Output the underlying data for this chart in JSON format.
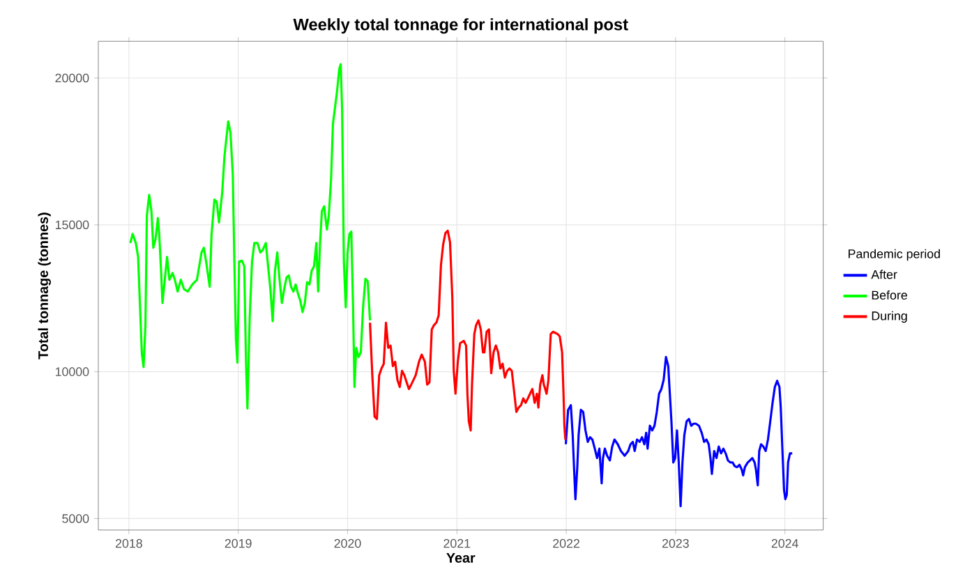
{
  "chart_data": {
    "type": "line",
    "title": "Weekly total tonnage for international post",
    "xlabel": "Year",
    "ylabel": "Total tonnage (tonnes)",
    "legend_title": "Pandemic period",
    "legend": "right",
    "grid": true,
    "line_style": "solid",
    "marker": "none",
    "xlim": [
      2017.72,
      2024.35
    ],
    "ylim": [
      4610,
      21250
    ],
    "xticks": [
      2018,
      2019,
      2020,
      2021,
      2022,
      2023,
      2024
    ],
    "yticks": [
      5000,
      10000,
      15000,
      20000
    ],
    "series": [
      {
        "name": "After",
        "color": "#0000ff",
        "x": [
          2021.996,
          2022.017,
          2022.042,
          2022.059,
          2022.071,
          2022.084,
          2022.101,
          2022.113,
          2022.134,
          2022.155,
          2022.176,
          2022.197,
          2022.218,
          2022.239,
          2022.261,
          2022.282,
          2022.303,
          2022.324,
          2022.336,
          2022.353,
          2022.374,
          2022.399,
          2022.42,
          2022.441,
          2022.471,
          2022.5,
          2022.534,
          2022.567,
          2022.588,
          2022.609,
          2022.626,
          2022.647,
          2022.672,
          2022.693,
          2022.714,
          2022.731,
          2022.744,
          2022.765,
          2022.786,
          2022.807,
          2022.828,
          2022.849,
          2022.87,
          2022.891,
          2022.912,
          2022.933,
          2022.945,
          2022.962,
          2022.979,
          2022.996,
          2023.013,
          2023.029,
          2023.046,
          2023.063,
          2023.08,
          2023.101,
          2023.122,
          2023.143,
          2023.164,
          2023.185,
          2023.214,
          2023.239,
          2023.261,
          2023.282,
          2023.303,
          2023.319,
          2023.332,
          2023.353,
          2023.374,
          2023.395,
          2023.416,
          2023.437,
          2023.458,
          2023.479,
          2023.5,
          2023.521,
          2023.542,
          2023.563,
          2023.584,
          2023.605,
          2023.618,
          2023.634,
          2023.66,
          2023.681,
          2023.702,
          2023.723,
          2023.735,
          2023.752,
          2023.765,
          2023.782,
          2023.803,
          2023.824,
          2023.845,
          2023.866,
          2023.887,
          2023.908,
          2023.929,
          2023.95,
          2023.962,
          2023.975,
          2023.992,
          2024.004,
          2024.017,
          2024.029,
          2024.046,
          2024.067
        ],
        "values": [
          7530,
          8700,
          8860,
          7840,
          6750,
          5660,
          6750,
          7840,
          8700,
          8630,
          8000,
          7610,
          7770,
          7690,
          7380,
          7060,
          7380,
          6200,
          7060,
          7380,
          7140,
          6980,
          7450,
          7690,
          7530,
          7300,
          7140,
          7300,
          7530,
          7610,
          7300,
          7690,
          7610,
          7770,
          7530,
          7920,
          7380,
          8160,
          8000,
          8160,
          8630,
          9250,
          9410,
          9720,
          10500,
          10190,
          9410,
          8310,
          6910,
          7060,
          8000,
          6910,
          5420,
          6910,
          7840,
          8310,
          8390,
          8160,
          8230,
          8230,
          8160,
          7920,
          7610,
          7690,
          7530,
          7060,
          6520,
          7300,
          7060,
          7450,
          7220,
          7380,
          7220,
          6980,
          6910,
          6910,
          6780,
          6750,
          6830,
          6670,
          6470,
          6750,
          6910,
          6980,
          7060,
          6910,
          6670,
          6130,
          7300,
          7530,
          7450,
          7300,
          7690,
          8310,
          8940,
          9480,
          9690,
          9480,
          8780,
          7530,
          5970,
          5660,
          5810,
          6910,
          7220,
          7220
        ]
      },
      {
        "name": "Before",
        "color": "#00ff00",
        "x": [
          2018.013,
          2018.034,
          2018.063,
          2018.084,
          2018.105,
          2018.118,
          2018.134,
          2018.151,
          2018.164,
          2018.185,
          2018.206,
          2018.223,
          2018.244,
          2018.265,
          2018.277,
          2018.294,
          2018.307,
          2018.328,
          2018.349,
          2018.37,
          2018.399,
          2018.42,
          2018.445,
          2018.475,
          2018.504,
          2018.538,
          2018.58,
          2018.622,
          2018.664,
          2018.685,
          2018.706,
          2018.739,
          2018.756,
          2018.782,
          2018.803,
          2018.824,
          2018.853,
          2018.874,
          2018.908,
          2018.929,
          2018.95,
          2018.966,
          2018.979,
          2018.992,
          2019.008,
          2019.034,
          2019.055,
          2019.071,
          2019.084,
          2019.105,
          2019.126,
          2019.147,
          2019.176,
          2019.202,
          2019.223,
          2019.252,
          2019.273,
          2019.294,
          2019.315,
          2019.336,
          2019.357,
          2019.378,
          2019.399,
          2019.42,
          2019.441,
          2019.462,
          2019.483,
          2019.504,
          2019.525,
          2019.546,
          2019.567,
          2019.588,
          2019.609,
          2019.63,
          2019.651,
          2019.672,
          2019.693,
          2019.714,
          2019.731,
          2019.748,
          2019.765,
          2019.786,
          2019.798,
          2019.811,
          2019.828,
          2019.849,
          2019.866,
          2019.882,
          2019.903,
          2019.924,
          2019.937,
          2019.95,
          2019.966,
          2019.983,
          2020.0,
          2020.017,
          2020.034,
          2020.05,
          2020.063,
          2020.079,
          2020.1,
          2020.121,
          2020.142,
          2020.163,
          2020.184,
          2020.205
        ],
        "values": [
          14380,
          14690,
          14380,
          13910,
          11880,
          10630,
          10160,
          11560,
          15310,
          16020,
          15470,
          14220,
          14530,
          15230,
          14690,
          13440,
          12340,
          13130,
          13910,
          13130,
          13360,
          13130,
          12730,
          13130,
          12810,
          12730,
          12970,
          13130,
          14060,
          14220,
          13750,
          12890,
          14690,
          15860,
          15780,
          15080,
          16090,
          17340,
          18520,
          18130,
          16720,
          13440,
          11090,
          10310,
          13750,
          13780,
          13590,
          10310,
          8750,
          11880,
          13750,
          14380,
          14380,
          14060,
          14140,
          14380,
          13590,
          12810,
          11720,
          13440,
          14060,
          13130,
          12340,
          12810,
          13200,
          13280,
          12890,
          12730,
          12970,
          12660,
          12420,
          12030,
          12340,
          13050,
          12970,
          13440,
          13590,
          14380,
          12730,
          14380,
          15470,
          15630,
          15230,
          14840,
          15310,
          16560,
          18440,
          18910,
          19530,
          20310,
          20470,
          18910,
          13750,
          12190,
          14060,
          14690,
          14770,
          12220,
          9480,
          10810,
          10500,
          10660,
          12220,
          13160,
          13080,
          11750
        ]
      },
      {
        "name": "During",
        "color": "#ff0000",
        "x": [
          2020.205,
          2020.226,
          2020.247,
          2020.268,
          2020.289,
          2020.31,
          2020.331,
          2020.351,
          2020.372,
          2020.393,
          2020.414,
          2020.435,
          2020.456,
          2020.477,
          2020.498,
          2020.519,
          2020.54,
          2020.561,
          2020.582,
          2020.603,
          2020.623,
          2020.653,
          2020.678,
          2020.707,
          2020.728,
          2020.749,
          2020.77,
          2020.791,
          2020.812,
          2020.833,
          2020.854,
          2020.874,
          2020.895,
          2020.916,
          2020.937,
          2020.958,
          2020.971,
          2020.987,
          2021.008,
          2021.029,
          2021.063,
          2021.084,
          2021.096,
          2021.109,
          2021.126,
          2021.138,
          2021.159,
          2021.176,
          2021.197,
          2021.218,
          2021.238,
          2021.251,
          2021.272,
          2021.293,
          2021.314,
          2021.335,
          2021.356,
          2021.377,
          2021.397,
          2021.418,
          2021.439,
          2021.46,
          2021.481,
          2021.502,
          2021.523,
          2021.544,
          2021.565,
          2021.586,
          2021.607,
          2021.628,
          2021.649,
          2021.669,
          2021.69,
          2021.711,
          2021.732,
          2021.745,
          2021.762,
          2021.782,
          2021.795,
          2021.808,
          2021.82,
          2021.837,
          2021.858,
          2021.879,
          2021.921,
          2021.941,
          2021.962,
          2021.975,
          2021.983,
          2021.992
        ],
        "values": [
          11670,
          9880,
          8470,
          8390,
          9880,
          10110,
          10270,
          11670,
          10810,
          10890,
          10190,
          10340,
          9720,
          9480,
          10030,
          9880,
          9640,
          9410,
          9560,
          9720,
          9880,
          10340,
          10580,
          10340,
          9560,
          9640,
          11440,
          11590,
          11670,
          11910,
          13630,
          14330,
          14720,
          14800,
          14410,
          12530,
          10030,
          9250,
          10340,
          10970,
          11050,
          10890,
          9250,
          8310,
          8000,
          9560,
          11280,
          11590,
          11750,
          11440,
          10660,
          10660,
          11360,
          11440,
          9950,
          10660,
          10890,
          10660,
          10110,
          10270,
          9800,
          10030,
          10110,
          10030,
          9330,
          8630,
          8780,
          8860,
          9090,
          8940,
          9090,
          9250,
          9410,
          8940,
          9250,
          8780,
          9560,
          9880,
          9560,
          9410,
          9250,
          9720,
          11280,
          11360,
          11280,
          11200,
          10660,
          9250,
          8160,
          7690
        ]
      }
    ]
  }
}
